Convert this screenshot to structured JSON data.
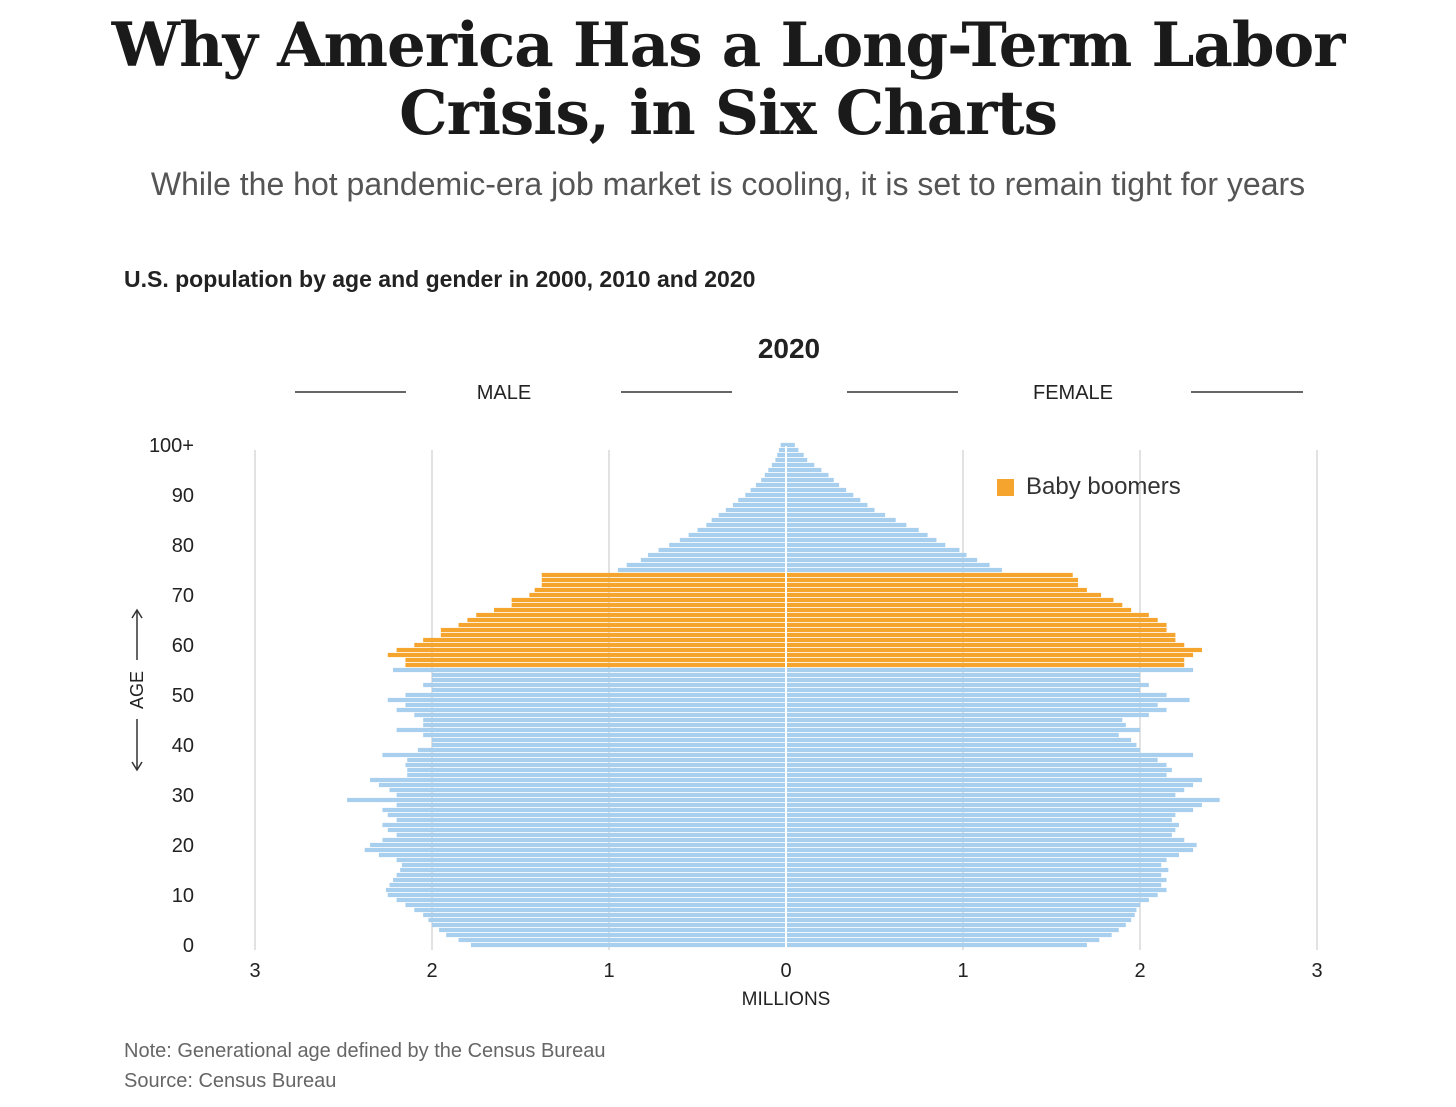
{
  "headline": "Why America Has a Long-Term Labor Crisis, in Six Charts",
  "dek": "While the hot pandemic-era job market is cooling, it is set to remain tight for years",
  "chart_data": {
    "type": "bar",
    "orientation": "horizontal-population-pyramid",
    "title": "U.S. population by age and gender in 2000, 2010 and 2020",
    "year_label": "2020",
    "left_label": "MALE",
    "right_label": "FEMALE",
    "xlabel": "MILLIONS",
    "ylabel": "AGE",
    "xlim": [
      -3,
      3
    ],
    "x_ticks": [
      {
        "value": -3,
        "label": "3"
      },
      {
        "value": -2,
        "label": "2"
      },
      {
        "value": -1,
        "label": "1"
      },
      {
        "value": 0,
        "label": "0"
      },
      {
        "value": 1,
        "label": "1"
      },
      {
        "value": 2,
        "label": "2"
      },
      {
        "value": 3,
        "label": "3"
      }
    ],
    "y_ticks": [
      {
        "value": 0,
        "label": "0"
      },
      {
        "value": 10,
        "label": "10"
      },
      {
        "value": 20,
        "label": "20"
      },
      {
        "value": 30,
        "label": "30"
      },
      {
        "value": 40,
        "label": "40"
      },
      {
        "value": 50,
        "label": "50"
      },
      {
        "value": 60,
        "label": "60"
      },
      {
        "value": 70,
        "label": "70"
      },
      {
        "value": 80,
        "label": "80"
      },
      {
        "value": 90,
        "label": "90"
      },
      {
        "value": 100,
        "label": "100+"
      }
    ],
    "legend": {
      "label": "Baby boomers",
      "color": "#f5a42d",
      "position": "top-right"
    },
    "grid": true,
    "colors": {
      "default": "#a8d0ee",
      "baby_boomers": "#f5a42d"
    },
    "baby_boomer_ages": [
      56,
      74
    ],
    "ages": [
      0,
      1,
      2,
      3,
      4,
      5,
      6,
      7,
      8,
      9,
      10,
      11,
      12,
      13,
      14,
      15,
      16,
      17,
      18,
      19,
      20,
      21,
      22,
      23,
      24,
      25,
      26,
      27,
      28,
      29,
      30,
      31,
      32,
      33,
      34,
      35,
      36,
      37,
      38,
      39,
      40,
      41,
      42,
      43,
      44,
      45,
      46,
      47,
      48,
      49,
      50,
      51,
      52,
      53,
      54,
      55,
      56,
      57,
      58,
      59,
      60,
      61,
      62,
      63,
      64,
      65,
      66,
      67,
      68,
      69,
      70,
      71,
      72,
      73,
      74,
      75,
      76,
      77,
      78,
      79,
      80,
      81,
      82,
      83,
      84,
      85,
      86,
      87,
      88,
      89,
      90,
      91,
      92,
      93,
      94,
      95,
      96,
      97,
      98,
      99,
      100
    ],
    "series": [
      {
        "name": "MALE",
        "values": [
          1.78,
          1.85,
          1.92,
          1.96,
          2.0,
          2.02,
          2.05,
          2.1,
          2.15,
          2.2,
          2.25,
          2.26,
          2.24,
          2.22,
          2.2,
          2.18,
          2.17,
          2.2,
          2.3,
          2.38,
          2.35,
          2.28,
          2.2,
          2.25,
          2.28,
          2.2,
          2.25,
          2.28,
          2.2,
          2.48,
          2.2,
          2.24,
          2.3,
          2.35,
          2.14,
          2.14,
          2.15,
          2.14,
          2.28,
          2.08,
          2.0,
          2.0,
          2.05,
          2.2,
          2.05,
          2.05,
          2.1,
          2.2,
          2.15,
          2.25,
          2.15,
          2.0,
          2.05,
          2.0,
          2.0,
          2.22,
          2.15,
          2.15,
          2.25,
          2.2,
          2.1,
          2.05,
          1.95,
          1.95,
          1.85,
          1.8,
          1.75,
          1.65,
          1.55,
          1.55,
          1.45,
          1.42,
          1.38,
          1.38,
          1.38,
          0.95,
          0.9,
          0.82,
          0.78,
          0.72,
          0.66,
          0.6,
          0.55,
          0.5,
          0.45,
          0.42,
          0.38,
          0.34,
          0.3,
          0.27,
          0.23,
          0.2,
          0.17,
          0.14,
          0.12,
          0.1,
          0.08,
          0.06,
          0.05,
          0.04,
          0.03
        ]
      },
      {
        "name": "FEMALE",
        "values": [
          1.7,
          1.77,
          1.84,
          1.88,
          1.92,
          1.95,
          1.97,
          1.98,
          2.0,
          2.05,
          2.1,
          2.15,
          2.12,
          2.15,
          2.12,
          2.16,
          2.12,
          2.15,
          2.22,
          2.3,
          2.32,
          2.25,
          2.18,
          2.2,
          2.22,
          2.18,
          2.2,
          2.3,
          2.35,
          2.45,
          2.2,
          2.25,
          2.3,
          2.35,
          2.15,
          2.18,
          2.15,
          2.1,
          2.3,
          2.0,
          1.98,
          1.95,
          1.88,
          2.0,
          1.92,
          1.9,
          2.05,
          2.15,
          2.1,
          2.28,
          2.15,
          2.0,
          2.05,
          2.0,
          2.0,
          2.3,
          2.25,
          2.25,
          2.3,
          2.35,
          2.25,
          2.2,
          2.2,
          2.15,
          2.15,
          2.1,
          2.05,
          1.95,
          1.9,
          1.85,
          1.78,
          1.7,
          1.65,
          1.65,
          1.62,
          1.22,
          1.15,
          1.08,
          1.02,
          0.98,
          0.9,
          0.85,
          0.8,
          0.75,
          0.68,
          0.62,
          0.56,
          0.5,
          0.46,
          0.42,
          0.38,
          0.34,
          0.3,
          0.27,
          0.24,
          0.2,
          0.16,
          0.12,
          0.1,
          0.07,
          0.05
        ]
      }
    ]
  },
  "notes": {
    "note": "Note: Generational age defined by the Census Bureau",
    "source": "Source: Census Bureau"
  }
}
